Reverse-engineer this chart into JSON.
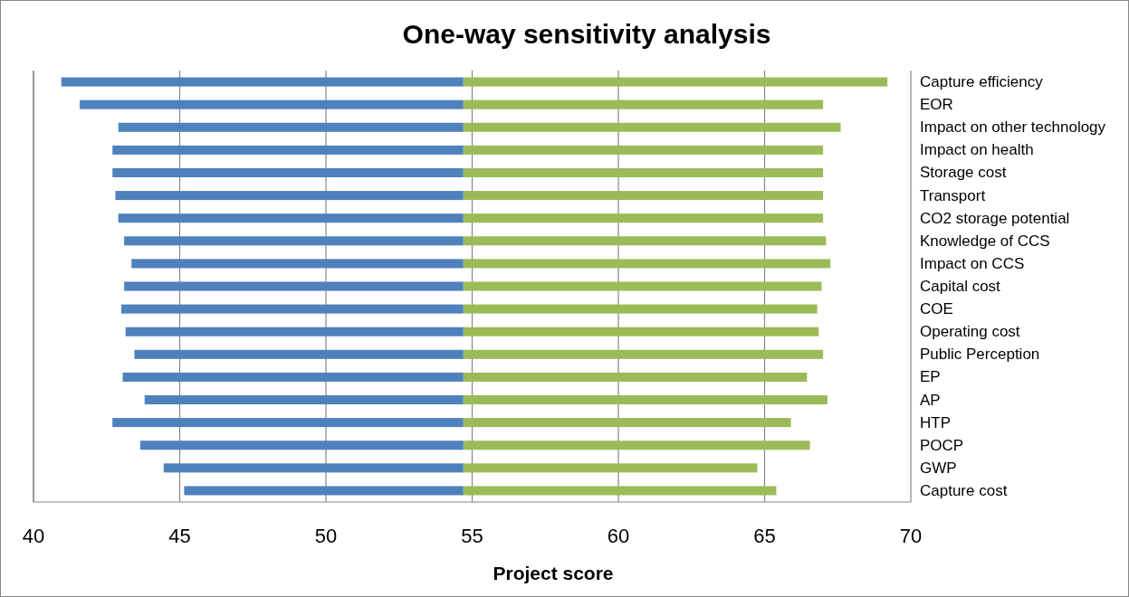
{
  "chart_data": {
    "type": "bar",
    "orientation": "horizontal",
    "title": "One-way sensitivity analysis",
    "xlabel": "Project score",
    "categories": [
      "Capture efficiency",
      "EOR",
      "Impact on other technology",
      "Impact on health",
      "Storage cost",
      "Transport",
      "CO2 storage potential",
      "Knowledge of CCS",
      "Impact on CCS",
      "Capital cost",
      "COE",
      "Operating cost",
      "Public Perception",
      "EP",
      "AP",
      "HTP",
      "POCP",
      "GWP",
      "Capture cost"
    ],
    "series": [
      {
        "color": "#4f81bd",
        "base": [
          40.95,
          41.58,
          42.9,
          42.7,
          42.7,
          42.8,
          42.9,
          43.1,
          43.35,
          43.1,
          43.0,
          43.15,
          43.45,
          43.05,
          43.8,
          42.7,
          43.65,
          44.45,
          45.15
        ],
        "values": [
          13.75,
          13.12,
          11.8,
          12.0,
          12.0,
          11.9,
          11.8,
          11.6,
          11.35,
          11.6,
          11.7,
          11.55,
          11.25,
          11.65,
          10.9,
          12.0,
          11.05,
          10.25,
          9.55
        ]
      },
      {
        "color": "#9bbb59",
        "base": [
          54.7,
          54.7,
          54.7,
          54.7,
          54.7,
          54.7,
          54.7,
          54.7,
          54.7,
          54.7,
          54.7,
          54.7,
          54.7,
          54.7,
          54.7,
          54.7,
          54.7,
          54.7,
          54.7
        ],
        "values": [
          14.5,
          12.3,
          12.9,
          12.3,
          12.3,
          12.3,
          12.3,
          12.4,
          12.55,
          12.25,
          12.1,
          12.15,
          12.3,
          11.75,
          12.45,
          11.2,
          11.85,
          10.05,
          10.7
        ]
      }
    ],
    "xlim": [
      40,
      70
    ],
    "xticks": [
      40,
      45,
      50,
      55,
      60,
      65,
      70
    ],
    "grid": "x"
  }
}
